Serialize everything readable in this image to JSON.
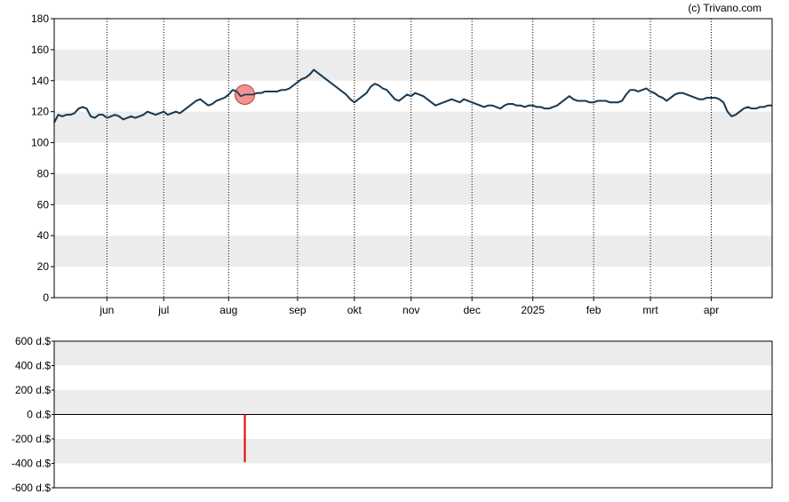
{
  "credit": "(c) Trivano.com",
  "chart_data": [
    {
      "type": "line",
      "x_tick_labels": [
        {
          "label": "jun",
          "idx": 13
        },
        {
          "label": "jul",
          "idx": 27
        },
        {
          "label": "aug",
          "idx": 43
        },
        {
          "label": "sep",
          "idx": 60
        },
        {
          "label": "okt",
          "idx": 74
        },
        {
          "label": "nov",
          "idx": 88
        },
        {
          "label": "dec",
          "idx": 103
        },
        {
          "label": "2025",
          "idx": 118
        },
        {
          "label": "feb",
          "idx": 133
        },
        {
          "label": "mrt",
          "idx": 147
        },
        {
          "label": "apr",
          "idx": 162
        }
      ],
      "ylim": [
        0,
        180
      ],
      "y_ticks": [
        0,
        20,
        40,
        60,
        80,
        100,
        120,
        140,
        160,
        180
      ],
      "grid": "alternating horizontal bands, dotted vertical month lines",
      "marker": {
        "idx": 47,
        "value": 131,
        "color": "#f08080"
      },
      "series": [
        {
          "color": "#1a3a52",
          "values": [
            113,
            118,
            117,
            118,
            118,
            119,
            122,
            123,
            122,
            117,
            116,
            118,
            118,
            116,
            117,
            118,
            117,
            115,
            116,
            117,
            116,
            117,
            118,
            120,
            119,
            118,
            119,
            120,
            118,
            119,
            120,
            119,
            121,
            123,
            125,
            127,
            128,
            126,
            124,
            125,
            127,
            128,
            129,
            131,
            134,
            133,
            130,
            131,
            131,
            131,
            132,
            132,
            133,
            133,
            133,
            133,
            134,
            134,
            135,
            137,
            139,
            141,
            142,
            144,
            147,
            145,
            143,
            141,
            139,
            137,
            135,
            133,
            131,
            128,
            126,
            128,
            130,
            132,
            136,
            138,
            137,
            135,
            134,
            131,
            128,
            127,
            129,
            131,
            130,
            132,
            131,
            130,
            128,
            126,
            124,
            125,
            126,
            127,
            128,
            127,
            126,
            128,
            127,
            126,
            125,
            124,
            123,
            124,
            124,
            123,
            122,
            124,
            125,
            125,
            124,
            124,
            123,
            124,
            124,
            123,
            123,
            122,
            122,
            123,
            124,
            126,
            128,
            130,
            128,
            127,
            127,
            127,
            126,
            126,
            127,
            127,
            127,
            126,
            126,
            126,
            127,
            131,
            134,
            134,
            133,
            134,
            135,
            133,
            132,
            130,
            129,
            127,
            129,
            131,
            132,
            132,
            131,
            130,
            129,
            128,
            128,
            129,
            129,
            129,
            128,
            126,
            120,
            117,
            118,
            120,
            122,
            123,
            122,
            122,
            123,
            123,
            124,
            124
          ]
        }
      ]
    },
    {
      "type": "bar",
      "ylim": [
        -600,
        600
      ],
      "y_ticks": [
        600,
        400,
        200,
        0,
        -200,
        -400,
        -600
      ],
      "y_tick_labels": [
        "600 d.$",
        "400 d.$",
        "200 d.$",
        "0 d.$",
        "-200 d.$",
        "-400 d.$",
        "-600 d.$"
      ],
      "bars": [
        {
          "idx": 47,
          "value": -390,
          "color": "#e00000"
        }
      ]
    }
  ]
}
